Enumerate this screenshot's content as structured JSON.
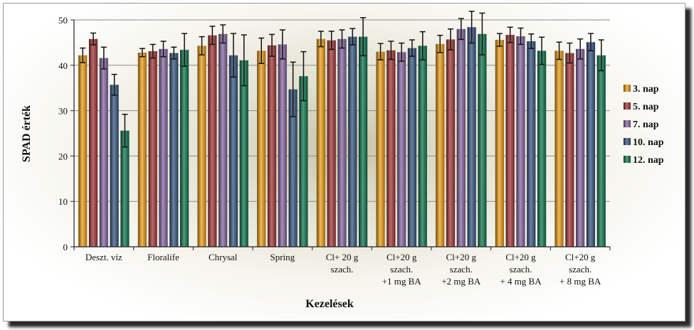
{
  "chart_data": {
    "type": "bar",
    "ylabel": "SPAD érték",
    "xlabel": "Kezelések",
    "ylim": [
      0,
      50
    ],
    "yticks": [
      "0",
      "10",
      "20",
      "30",
      "40",
      "50"
    ],
    "grid": "horizontal",
    "legend_position": "right",
    "categories": [
      [
        "Deszt. víz"
      ],
      [
        "Floralife"
      ],
      [
        "Chrysal"
      ],
      [
        "Spring"
      ],
      [
        "Cl+ 20 g",
        "szach."
      ],
      [
        "Cl+20 g",
        "szach.",
        "+1 mg BA"
      ],
      [
        "Cl+20 g",
        "szach.",
        "+2 mg BA"
      ],
      [
        "Cl+20 g",
        "szach.",
        "+ 4 mg BA"
      ],
      [
        "Cl+20 g",
        "szach.",
        "+ 8 mg BA"
      ]
    ],
    "series": [
      {
        "name": "3. nap",
        "color": "#f2a219",
        "values": [
          42.2,
          42.8,
          44.3,
          43.2,
          45.8,
          43.0,
          44.7,
          45.6,
          43.2
        ],
        "errors": [
          1.6,
          0.9,
          2.0,
          2.8,
          1.7,
          1.8,
          1.9,
          1.4,
          1.9
        ]
      },
      {
        "name": "5. nap",
        "color": "#a83a3a",
        "values": [
          45.8,
          43.1,
          46.6,
          44.4,
          45.5,
          43.3,
          45.7,
          46.7,
          42.7
        ],
        "errors": [
          1.3,
          1.5,
          2.0,
          2.4,
          2.0,
          2.0,
          2.3,
          1.7,
          2.2
        ]
      },
      {
        "name": "7. nap",
        "color": "#8a6aa6",
        "values": [
          41.6,
          43.6,
          46.9,
          44.6,
          45.8,
          42.9,
          48.0,
          46.4,
          43.6
        ],
        "errors": [
          2.4,
          1.7,
          2.0,
          3.2,
          2.0,
          2.0,
          2.3,
          1.8,
          2.2
        ]
      },
      {
        "name": "10. nap",
        "color": "#3a5a86",
        "values": [
          35.7,
          42.7,
          42.2,
          34.7,
          46.3,
          43.8,
          48.4,
          45.3,
          45.1
        ],
        "errors": [
          2.3,
          1.3,
          4.8,
          6.0,
          1.8,
          1.8,
          3.5,
          1.6,
          1.9
        ]
      },
      {
        "name": "12. nap",
        "color": "#117a52",
        "values": [
          25.6,
          43.4,
          41.1,
          37.6,
          46.3,
          44.3,
          46.9,
          43.2,
          42.2
        ],
        "errors": [
          3.6,
          3.6,
          5.6,
          5.4,
          4.2,
          3.1,
          4.6,
          3.0,
          3.4
        ]
      }
    ]
  }
}
